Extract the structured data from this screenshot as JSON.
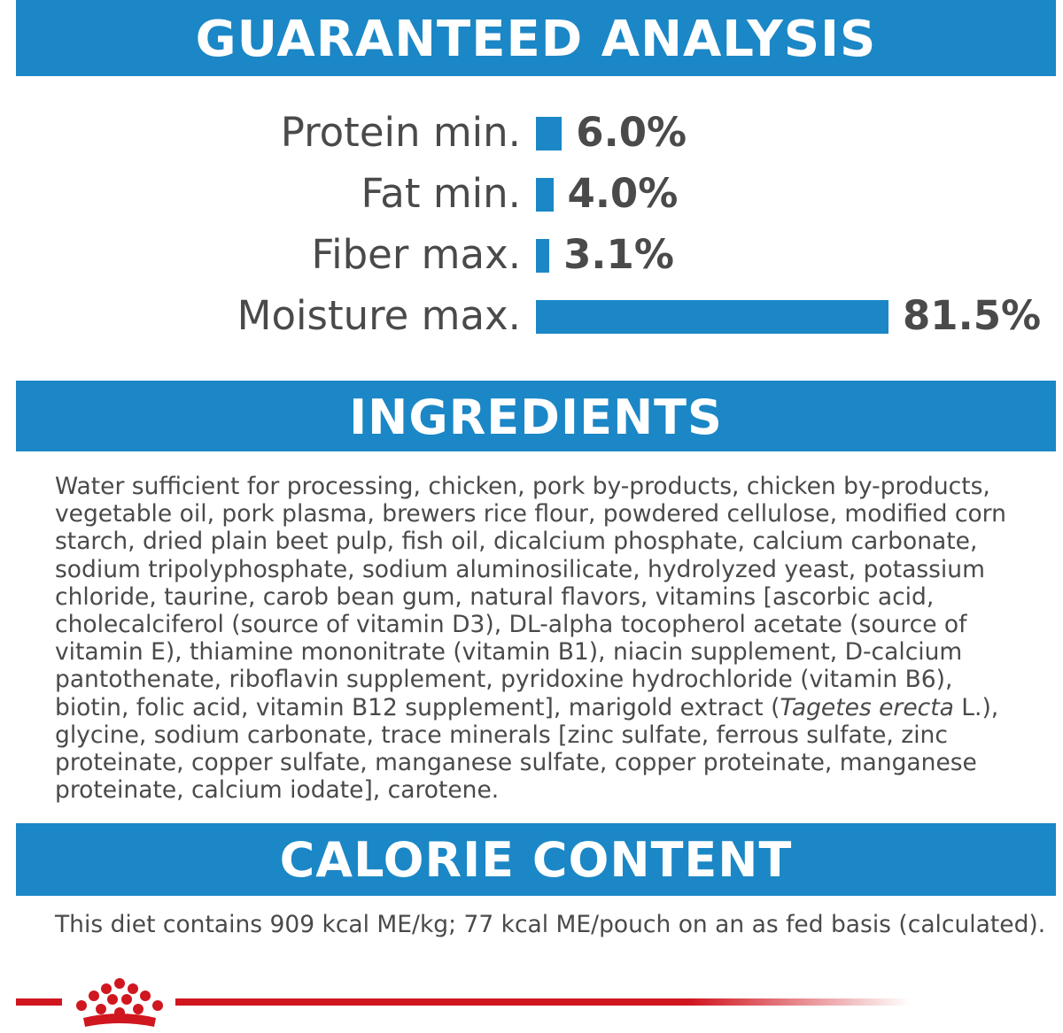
{
  "guaranteed_analysis": {
    "title": "GUARANTEED ANALYSIS",
    "rows": [
      {
        "label": "Protein min.",
        "value": "6.0%",
        "percent": 6.0
      },
      {
        "label": "Fat min.",
        "value": "4.0%",
        "percent": 4.0
      },
      {
        "label": "Fiber max.",
        "value": "3.1%",
        "percent": 3.1
      },
      {
        "label": "Moisture max.",
        "value": "81.5%",
        "percent": 81.5
      }
    ]
  },
  "ingredients": {
    "title": "INGREDIENTS",
    "text_before_italic": "Water sufficient for processing, chicken, pork by-products, chicken by-products, vegetable oil, pork plasma, brewers rice flour, powdered cellulose, modified corn starch, dried plain beet pulp, fish oil, dicalcium phosphate, calcium carbonate, sodium tripolyphosphate, sodium aluminosilicate, hydrolyzed yeast, potassium chloride, taurine, carob bean gum, natural flavors, vitamins [ascorbic acid, cholecalciferol (source of vitamin D3), DL-alpha tocopherol acetate (source of vitamin E), thiamine mononitrate (vitamin B1), niacin supplement, D-calcium pantothenate, riboflavin supplement, pyridoxine hydrochloride (vitamin B6), biotin, folic acid, vitamin B12 supplement], marigold extract (",
    "italic_text": "Tagetes erecta",
    "text_after_italic": " L.), glycine, sodium carbonate, trace minerals [zinc sulfate, ferrous sulfate, zinc proteinate, copper sulfate, manganese sulfate, copper proteinate, manganese proteinate, calcium iodate], carotene."
  },
  "calorie_content": {
    "title": "CALORIE CONTENT",
    "text": "This diet contains 909 kcal ME/kg; 77 kcal ME/pouch on an as fed basis (calculated)."
  },
  "footer": {
    "logo_icon": "crown-icon",
    "brand_color": "#d0161f"
  },
  "colors": {
    "accent": "#1b87c6",
    "text": "#4a4a4a"
  }
}
